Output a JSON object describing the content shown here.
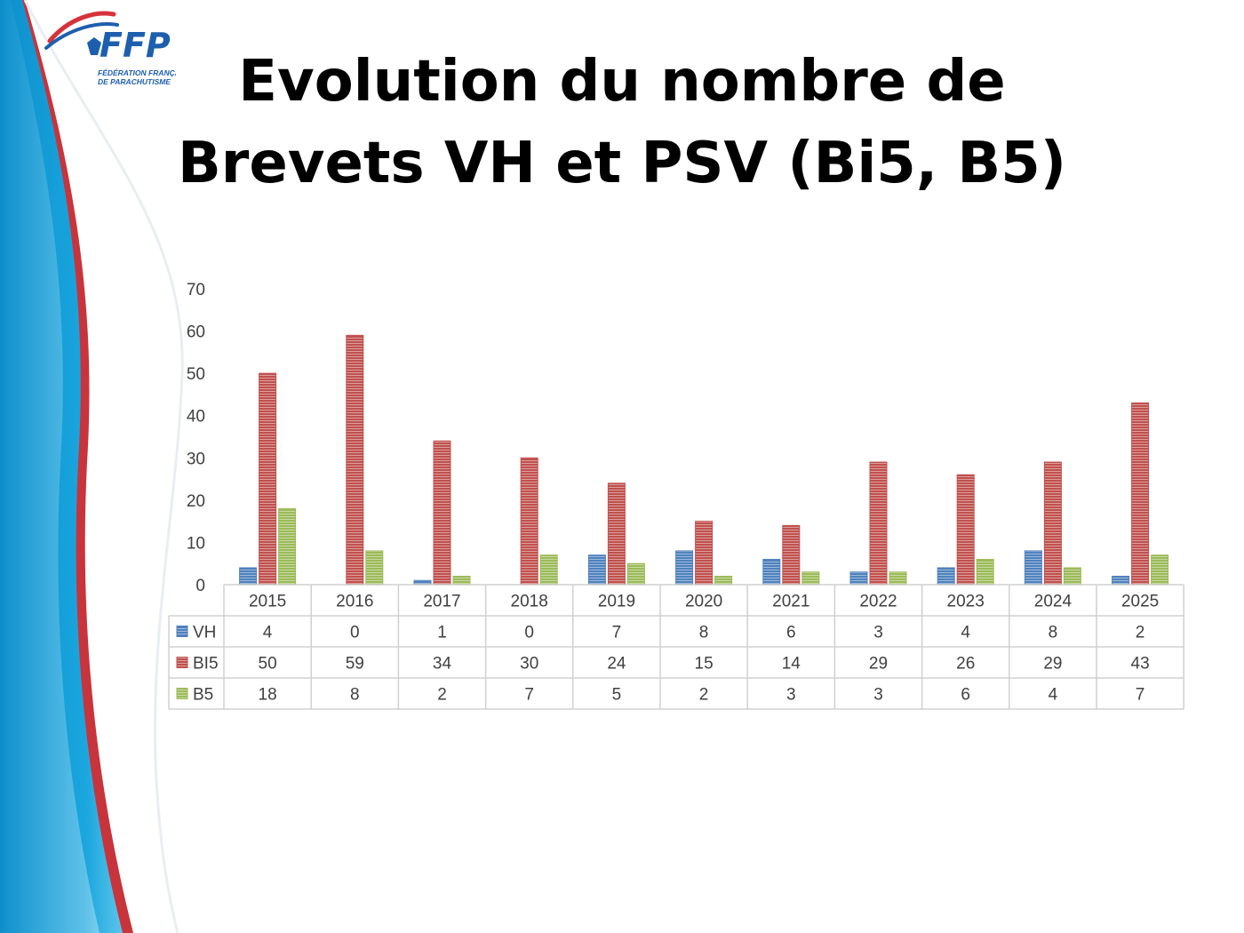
{
  "slide": {
    "title_line1": "Evolution du nombre de",
    "title_line2": "Brevets VH et PSV (Bi5, B5)"
  },
  "logo": {
    "text": "FFP",
    "sub1": "FÉDÉRATION FRANÇAISE",
    "sub2": "DE PARACHUTISME"
  },
  "colors": {
    "blue_band": "#1aa6de",
    "red_band": "#c8343b",
    "logo_blue": "#1d5fae",
    "logo_red": "#d7323a"
  },
  "chart_data": {
    "type": "bar",
    "categories": [
      "2015",
      "2016",
      "2017",
      "2018",
      "2019",
      "2020",
      "2021",
      "2022",
      "2023",
      "2024",
      "2025"
    ],
    "series": [
      {
        "name": "VH",
        "color": "#4f81bd",
        "values": [
          4,
          0,
          1,
          0,
          7,
          8,
          6,
          3,
          4,
          8,
          2
        ]
      },
      {
        "name": "BI5",
        "color": "#c0504d",
        "values": [
          50,
          59,
          34,
          30,
          24,
          15,
          14,
          29,
          26,
          29,
          43
        ]
      },
      {
        "name": "B5",
        "color": "#9bbb59",
        "values": [
          18,
          8,
          2,
          7,
          5,
          2,
          3,
          3,
          6,
          4,
          7
        ]
      }
    ],
    "ylim": [
      0,
      70
    ],
    "yticks": [
      0,
      10,
      20,
      30,
      40,
      50,
      60,
      70
    ],
    "grid": false,
    "legend": "data-table"
  }
}
